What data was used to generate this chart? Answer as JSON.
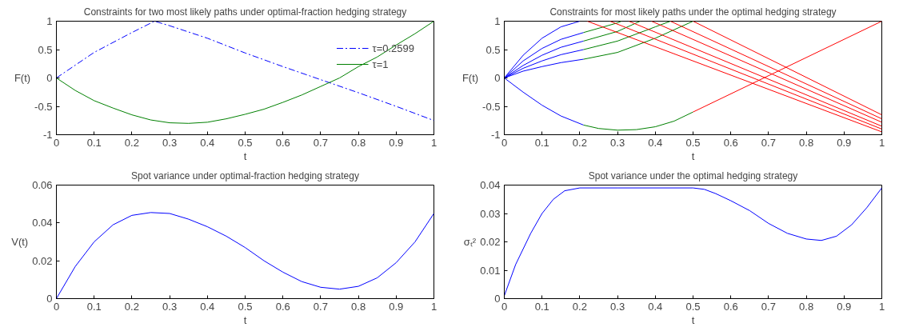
{
  "chart_data": [
    {
      "type": "line",
      "title": "Constraints for two most likely paths under optimal-fraction hedging strategy",
      "xlabel": "t",
      "ylabel": "F(t)",
      "xlim": [
        0,
        1
      ],
      "ylim": [
        -1,
        1
      ],
      "xticks": [
        0,
        0.1,
        0.2,
        0.3,
        0.4,
        0.5,
        0.6,
        0.7,
        0.8,
        0.9,
        1
      ],
      "yticks": [
        -1,
        -0.5,
        0,
        0.5,
        1
      ],
      "grid": false,
      "legend": "top right",
      "series": [
        {
          "name": "τ=0.2599",
          "color": "#0000ff",
          "line_style": "dashed",
          "x": [
            0,
            0.1,
            0.2,
            0.26,
            0.3,
            0.4,
            0.5,
            0.6,
            0.7,
            0.8,
            0.9,
            1
          ],
          "values": [
            0,
            0.45,
            0.8,
            1.0,
            0.92,
            0.7,
            0.44,
            0.2,
            -0.03,
            -0.26,
            -0.5,
            -0.75
          ]
        },
        {
          "name": "τ=1",
          "color": "#008000",
          "line_style": "solid",
          "x": [
            0,
            0.05,
            0.1,
            0.15,
            0.2,
            0.25,
            0.3,
            0.35,
            0.4,
            0.45,
            0.5,
            0.55,
            0.6,
            0.65,
            0.7,
            0.75,
            0.8,
            0.85,
            0.9,
            0.95,
            1
          ],
          "values": [
            0,
            -0.22,
            -0.4,
            -0.53,
            -0.65,
            -0.74,
            -0.79,
            -0.8,
            -0.78,
            -0.72,
            -0.64,
            -0.55,
            -0.43,
            -0.3,
            -0.15,
            0.0,
            0.2,
            0.37,
            0.58,
            0.78,
            1.0
          ]
        }
      ]
    },
    {
      "type": "line",
      "title": "Constraints for most likely paths under the optimal hedging strategy",
      "xlabel": "t",
      "ylabel": "F(t)",
      "xlim": [
        0,
        1
      ],
      "ylim": [
        -1,
        1
      ],
      "xticks": [
        0,
        0.1,
        0.2,
        0.3,
        0.4,
        0.5,
        0.6,
        0.7,
        0.8,
        0.9,
        1
      ],
      "yticks": [
        -1,
        -0.5,
        0,
        0.5,
        1
      ],
      "grid": false,
      "series": [
        {
          "color": "#0000ff",
          "x": [
            0,
            0.05,
            0.1,
            0.15,
            0.21
          ],
          "values": [
            0,
            -0.25,
            -0.48,
            -0.67,
            -0.83
          ]
        },
        {
          "color": "#008000",
          "x": [
            0.21,
            0.25,
            0.3,
            0.35,
            0.4,
            0.45,
            0.5
          ],
          "values": [
            -0.83,
            -0.89,
            -0.92,
            -0.91,
            -0.86,
            -0.76,
            -0.6
          ]
        },
        {
          "color": "#ff0000",
          "x": [
            0.5,
            1
          ],
          "values": [
            -0.6,
            1
          ]
        },
        {
          "color": "#0000ff",
          "x": [
            0,
            0.05,
            0.1,
            0.15,
            0.21
          ],
          "values": [
            0,
            0.12,
            0.2,
            0.27,
            0.33
          ]
        },
        {
          "color": "#0000ff",
          "x": [
            0,
            0.05,
            0.1,
            0.15,
            0.21
          ],
          "values": [
            0,
            0.17,
            0.3,
            0.41,
            0.5
          ]
        },
        {
          "color": "#0000ff",
          "x": [
            0,
            0.05,
            0.1,
            0.15,
            0.21
          ],
          "values": [
            0,
            0.22,
            0.4,
            0.54,
            0.65
          ]
        },
        {
          "color": "#0000ff",
          "x": [
            0,
            0.05,
            0.1,
            0.15,
            0.21
          ],
          "values": [
            0,
            0.3,
            0.52,
            0.68,
            0.8
          ]
        },
        {
          "color": "#0000ff",
          "x": [
            0,
            0.05,
            0.1,
            0.15,
            0.2
          ],
          "values": [
            0,
            0.4,
            0.7,
            0.9,
            1.0
          ]
        },
        {
          "color": "#008000",
          "x": [
            0.21,
            0.3,
            0.4,
            0.5
          ],
          "values": [
            0.33,
            0.45,
            0.7,
            1.0
          ]
        },
        {
          "color": "#008000",
          "x": [
            0.21,
            0.3,
            0.4,
            0.44
          ],
          "values": [
            0.5,
            0.65,
            0.9,
            1.0
          ]
        },
        {
          "color": "#008000",
          "x": [
            0.21,
            0.3,
            0.36
          ],
          "values": [
            0.65,
            0.82,
            1.0
          ]
        },
        {
          "color": "#008000",
          "x": [
            0.21,
            0.3,
            0.31
          ],
          "values": [
            0.8,
            0.97,
            1.0
          ]
        },
        {
          "color": "#ff0000",
          "x": [
            0.22,
            1
          ],
          "values": [
            1,
            -0.95
          ]
        },
        {
          "color": "#ff0000",
          "x": [
            0.28,
            1
          ],
          "values": [
            1,
            -0.9
          ]
        },
        {
          "color": "#ff0000",
          "x": [
            0.33,
            1
          ],
          "values": [
            1,
            -0.85
          ]
        },
        {
          "color": "#ff0000",
          "x": [
            0.39,
            1
          ],
          "values": [
            1,
            -0.78
          ]
        },
        {
          "color": "#ff0000",
          "x": [
            0.44,
            1
          ],
          "values": [
            1,
            -0.72
          ]
        },
        {
          "color": "#ff0000",
          "x": [
            0.5,
            1
          ],
          "values": [
            1,
            -0.65
          ]
        }
      ]
    },
    {
      "type": "line",
      "title": "Spot variance under optimal-fraction hedging strategy",
      "xlabel": "t",
      "ylabel": "V(t)",
      "xlim": [
        0,
        1
      ],
      "ylim": [
        0,
        0.06
      ],
      "xticks": [
        0,
        0.1,
        0.2,
        0.3,
        0.4,
        0.5,
        0.6,
        0.7,
        0.8,
        0.9,
        1
      ],
      "yticks": [
        0,
        0.02,
        0.04,
        0.06
      ],
      "grid": false,
      "series": [
        {
          "color": "#0000ff",
          "x": [
            0,
            0.05,
            0.1,
            0.15,
            0.2,
            0.25,
            0.3,
            0.35,
            0.4,
            0.45,
            0.5,
            0.55,
            0.6,
            0.65,
            0.7,
            0.75,
            0.8,
            0.85,
            0.9,
            0.95,
            1
          ],
          "values": [
            0,
            0.017,
            0.03,
            0.039,
            0.044,
            0.0455,
            0.045,
            0.042,
            0.038,
            0.033,
            0.027,
            0.02,
            0.014,
            0.009,
            0.006,
            0.005,
            0.0065,
            0.011,
            0.019,
            0.03,
            0.045
          ]
        }
      ]
    },
    {
      "type": "line",
      "title": "Spot variance under the optimal hedging strategy",
      "xlabel": "t",
      "ylabel": "σₜ²",
      "xlim": [
        0,
        1
      ],
      "ylim": [
        0,
        0.04
      ],
      "xticks": [
        0,
        0.1,
        0.2,
        0.3,
        0.4,
        0.5,
        0.6,
        0.7,
        0.8,
        0.9,
        1
      ],
      "yticks": [
        0,
        0.01,
        0.02,
        0.03,
        0.04
      ],
      "grid": false,
      "series": [
        {
          "color": "#0000ff",
          "x": [
            0,
            0.03,
            0.07,
            0.1,
            0.13,
            0.16,
            0.2,
            0.3,
            0.5,
            0.53,
            0.56,
            0.6,
            0.65,
            0.7,
            0.75,
            0.8,
            0.84,
            0.88,
            0.92,
            0.96,
            1
          ],
          "values": [
            0.001,
            0.012,
            0.023,
            0.03,
            0.035,
            0.038,
            0.039,
            0.039,
            0.039,
            0.0385,
            0.037,
            0.0345,
            0.031,
            0.0265,
            0.023,
            0.021,
            0.0205,
            0.022,
            0.026,
            0.032,
            0.039
          ]
        }
      ]
    }
  ]
}
